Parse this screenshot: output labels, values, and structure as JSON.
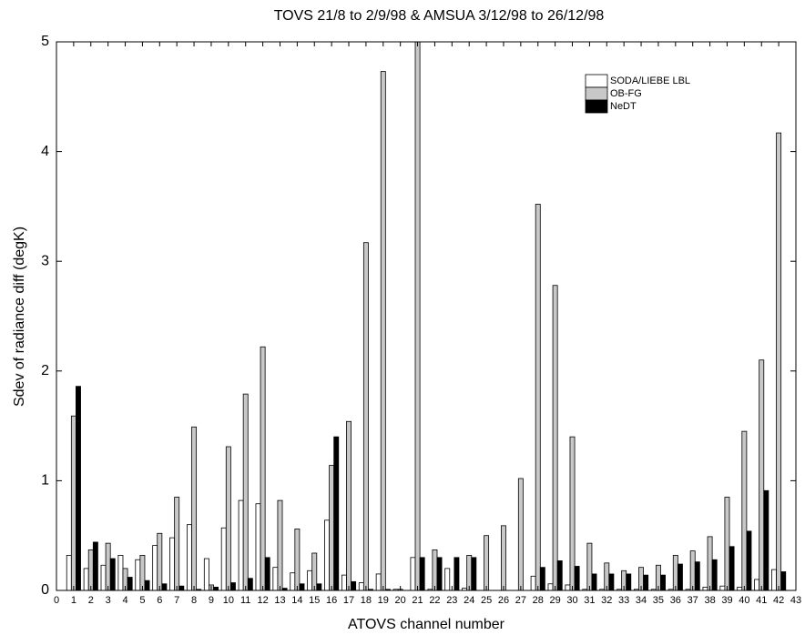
{
  "chart_data": {
    "type": "bar",
    "title": "TOVS 21/8 to 2/9/98 & AMSUA 3/12/98 to 26/12/98",
    "xlabel": "ATOVS channel number",
    "ylabel": "Sdev of  radiance diff (degK)",
    "x": [
      1,
      2,
      3,
      4,
      5,
      6,
      7,
      8,
      9,
      10,
      11,
      12,
      13,
      14,
      15,
      16,
      17,
      18,
      19,
      20,
      21,
      22,
      23,
      24,
      25,
      26,
      27,
      28,
      29,
      30,
      31,
      32,
      33,
      34,
      35,
      36,
      37,
      38,
      39,
      40,
      41,
      42
    ],
    "series": [
      {
        "name": "SODA/LIEBE LBL",
        "color": "#ffffff",
        "values": [
          0.32,
          0.2,
          0.23,
          0.32,
          0.28,
          0.41,
          0.48,
          0.6,
          0.29,
          0.57,
          0.82,
          0.79,
          0.21,
          0.16,
          0.18,
          0.64,
          0.14,
          0.07,
          0.15,
          0.01,
          0.3,
          0.01,
          0.2,
          0.02,
          0,
          0,
          0,
          0.13,
          0.06,
          0.05,
          0.01,
          0.01,
          0.01,
          0.01,
          0.01,
          0.01,
          0.01,
          0.03,
          0.04,
          0.03,
          0.1,
          0.19
        ]
      },
      {
        "name": "OB-FG",
        "color": "#c8c8c8",
        "values": [
          1.59,
          0.37,
          0.43,
          0.2,
          0.32,
          0.52,
          0.85,
          1.49,
          0.05,
          1.31,
          1.79,
          2.22,
          0.82,
          0.56,
          0.34,
          1.14,
          1.54,
          3.17,
          4.73,
          0.01,
          5.0,
          0.37,
          0,
          0.32,
          0.5,
          0.59,
          1.02,
          3.52,
          2.78,
          1.4,
          0.43,
          0.25,
          0.18,
          0.21,
          0.23,
          0.32,
          0.36,
          0.49,
          0.85,
          1.45,
          2.1,
          4.17
        ]
      },
      {
        "name": "NeDT",
        "color": "#000000",
        "values": [
          1.86,
          0.44,
          0.29,
          0.12,
          0.09,
          0.06,
          0.04,
          0.01,
          0.03,
          0.07,
          0.11,
          0.3,
          0.02,
          0.06,
          0.06,
          1.4,
          0.08,
          0.01,
          0.01,
          0,
          0.3,
          0.3,
          0.3,
          0.3,
          0,
          0,
          0,
          0.21,
          0.27,
          0.22,
          0.15,
          0.15,
          0.15,
          0.14,
          0.14,
          0.24,
          0.26,
          0.28,
          0.4,
          0.54,
          0.91,
          0.17
        ]
      }
    ],
    "xlim": [
      0,
      43
    ],
    "xticks": [
      0,
      1,
      2,
      3,
      4,
      5,
      6,
      7,
      8,
      9,
      10,
      11,
      12,
      13,
      14,
      15,
      16,
      17,
      18,
      19,
      20,
      21,
      22,
      23,
      24,
      25,
      26,
      27,
      28,
      29,
      30,
      31,
      32,
      33,
      34,
      35,
      36,
      37,
      38,
      39,
      40,
      41,
      42,
      43
    ],
    "ylim": [
      0,
      5
    ],
    "yticks": [
      0,
      1,
      2,
      3,
      4,
      5
    ],
    "legend": "upper right"
  }
}
